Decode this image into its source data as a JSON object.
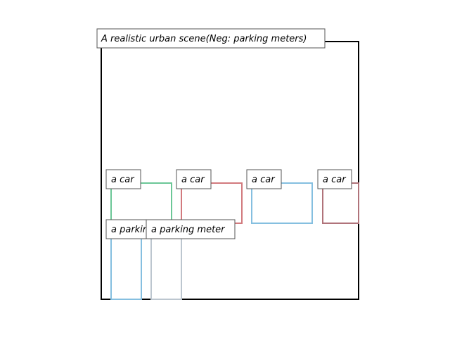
{
  "title": "A realistic urban scene(Neg: parking meters)",
  "boxes": [
    {
      "label": "a car",
      "color": "#6cc797"
    },
    {
      "label": "a car",
      "color": "#d27a7e"
    },
    {
      "label": "a car",
      "color": "#85bfe0"
    },
    {
      "label": "a car",
      "color": "#b0737a"
    },
    {
      "label": "a parking meter",
      "color": "#85bfe0"
    },
    {
      "label": "a parking meter",
      "color": "#bcc6cf"
    }
  ]
}
